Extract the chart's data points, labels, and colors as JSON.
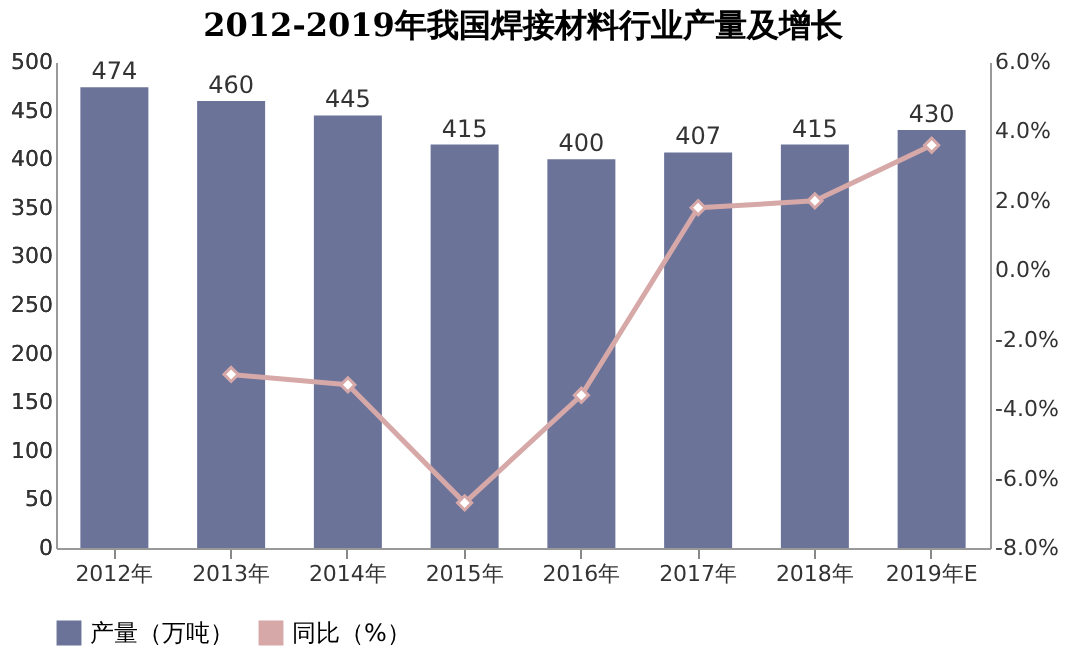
{
  "chart_data": {
    "type": "bar",
    "title": "2012-2019年我国焊接材料行业产量及增长",
    "categories": [
      "2012年",
      "2013年",
      "2014年",
      "2015年",
      "2016年",
      "2017年",
      "2018年",
      "2019年E"
    ],
    "series": [
      {
        "name": "产量（万吨）",
        "color": "#6b7399",
        "values": [
          474,
          460,
          445,
          415,
          400,
          407,
          415,
          430
        ],
        "value_labels": [
          "474",
          "460",
          "445",
          "415",
          "400",
          "407",
          "415",
          "430"
        ]
      },
      {
        "name": "同比（%）",
        "type": "line",
        "axis": "y2",
        "color": "#d7a8a8",
        "values": [
          null,
          -3.0,
          -3.3,
          -6.7,
          -3.6,
          1.8,
          2.0,
          3.6
        ]
      }
    ],
    "ylim": [
      0,
      500
    ],
    "yticks": [
      0,
      50,
      100,
      150,
      200,
      250,
      300,
      350,
      400,
      450,
      500
    ],
    "y2lim": [
      -8,
      6
    ],
    "y2ticks": [
      {
        "value": -8,
        "label": "-8.0%"
      },
      {
        "value": -6,
        "label": "-6.0%"
      },
      {
        "value": -4,
        "label": "-4.0%"
      },
      {
        "value": -2,
        "label": "-2.0%"
      },
      {
        "value": 0,
        "label": "0.0%"
      },
      {
        "value": 2,
        "label": "2.0%"
      },
      {
        "value": 4,
        "label": "4.0%"
      },
      {
        "value": 6,
        "label": "6.0%"
      }
    ],
    "marker": "diamond",
    "legend": "bottom",
    "grid": false
  }
}
